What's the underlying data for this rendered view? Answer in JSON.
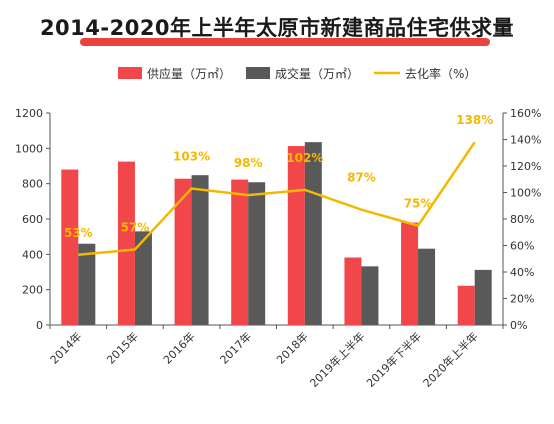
{
  "chart_data": {
    "type": "bar",
    "title": "2014-2020年上半年太原市新建商品住宅供求量",
    "categories": [
      "2014年",
      "2015年",
      "2016年",
      "2017年",
      "2018年",
      "2019年上半年",
      "2019年下半年",
      "2020年上半年"
    ],
    "series": [
      {
        "name": "供应量（万㎡）",
        "kind": "bar",
        "axis": "left",
        "color": "#f2474a",
        "values": [
          880,
          925,
          828,
          823,
          1013,
          382,
          580,
          222
        ]
      },
      {
        "name": "成交量（万㎡）",
        "kind": "bar",
        "axis": "left",
        "color": "#595959",
        "values": [
          460,
          530,
          848,
          808,
          1035,
          332,
          432,
          312
        ]
      },
      {
        "name": "去化率（%）",
        "kind": "line",
        "axis": "right",
        "color": "#f5b800",
        "values": [
          53,
          57,
          103,
          98,
          102,
          87,
          75,
          138
        ],
        "labels": [
          "53%",
          "57%",
          "103%",
          "98%",
          "102%",
          "87%",
          "75%",
          "138%"
        ]
      }
    ],
    "ylim_left": [
      0,
      1200
    ],
    "yticks_left": [
      "0",
      "200",
      "400",
      "600",
      "800",
      "1000",
      "1200"
    ],
    "ylim_right": [
      0,
      160
    ],
    "yticks_right": [
      "0%",
      "20%",
      "40%",
      "60%",
      "80%",
      "100%",
      "120%",
      "140%",
      "160%"
    ],
    "legend_position": "top-center",
    "grid": false
  }
}
